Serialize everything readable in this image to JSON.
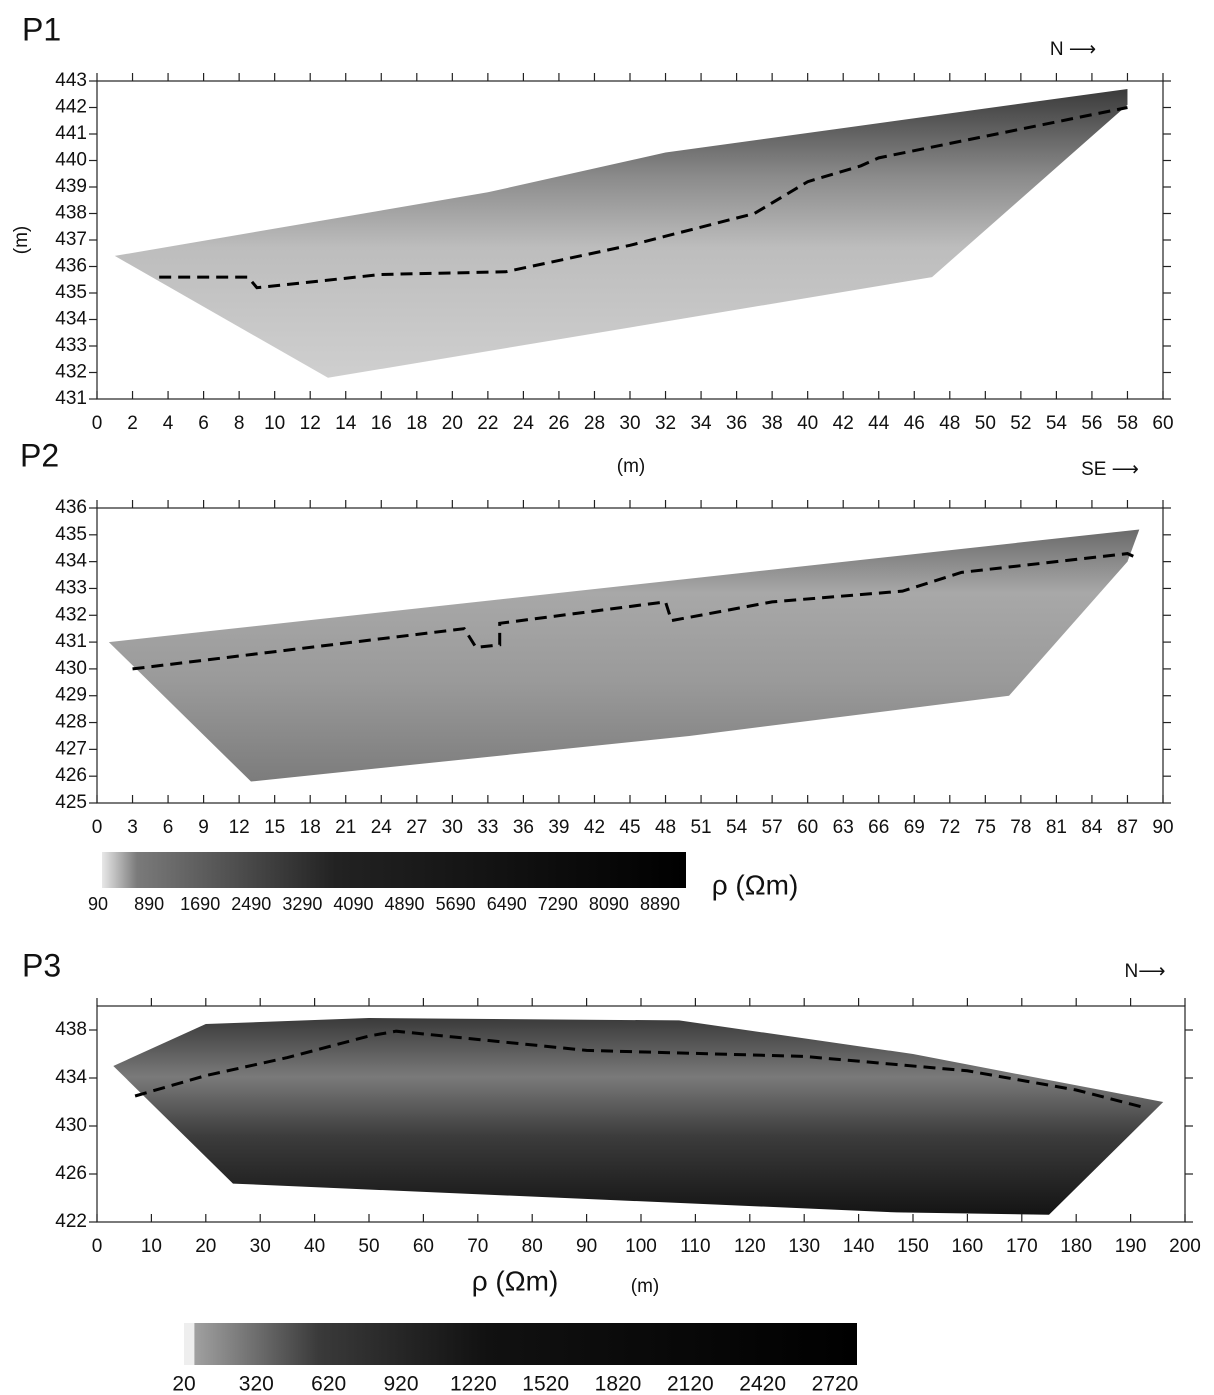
{
  "chart_data": [
    {
      "type": "line",
      "panel_label": "P1",
      "direction_label": "N ⟶",
      "xlabel": "(m)",
      "ylabel": "(m)",
      "xlim": [
        0,
        60
      ],
      "ylim": [
        431,
        443
      ],
      "xticks": [
        0,
        2,
        4,
        6,
        8,
        10,
        12,
        14,
        16,
        18,
        20,
        22,
        24,
        26,
        28,
        30,
        32,
        34,
        36,
        38,
        40,
        42,
        44,
        46,
        48,
        50,
        52,
        54,
        56,
        58,
        60
      ],
      "yticks": [
        431,
        432,
        433,
        434,
        435,
        436,
        437,
        438,
        439,
        440,
        441,
        442,
        443
      ],
      "section": {
        "x": [
          1,
          22,
          32,
          58,
          58,
          47,
          13
        ],
        "y": [
          436.4,
          438.8,
          440.3,
          442.7,
          442.1,
          435.6,
          431.8
        ]
      },
      "series": [
        {
          "color": "#000000",
          "x": [
            3.5,
            8.5,
            9,
            16,
            23,
            30,
            37,
            40,
            43,
            44,
            58
          ],
          "values": [
            435.6,
            435.6,
            435.2,
            435.7,
            435.8,
            436.8,
            438,
            439.2,
            439.8,
            440.1,
            442
          ]
        }
      ]
    },
    {
      "type": "line",
      "panel_label": "P2",
      "direction_label": "SE ⟶",
      "xlim": [
        0,
        90
      ],
      "ylim": [
        425,
        436
      ],
      "xticks": [
        0,
        3,
        6,
        9,
        12,
        15,
        18,
        21,
        24,
        27,
        30,
        33,
        36,
        39,
        42,
        45,
        48,
        51,
        54,
        57,
        60,
        63,
        66,
        69,
        72,
        75,
        78,
        81,
        84,
        87,
        90
      ],
      "yticks": [
        425,
        426,
        427,
        428,
        429,
        430,
        431,
        432,
        433,
        434,
        435,
        436
      ],
      "section": {
        "x": [
          1,
          88,
          87,
          77,
          50,
          13
        ],
        "y": [
          431,
          435.2,
          434,
          429,
          427.5,
          425.8
        ]
      },
      "series": [
        {
          "color": "#000000",
          "x": [
            3,
            31,
            32,
            34,
            34,
            48,
            48.5,
            57,
            68,
            73,
            87,
            88
          ],
          "values": [
            430,
            431.5,
            430.8,
            430.9,
            431.7,
            432.5,
            431.8,
            432.5,
            432.9,
            433.6,
            434.3,
            434.1
          ]
        }
      ],
      "colorbar": {
        "label": "ρ (Ωm)",
        "ticks": [
          90,
          890,
          1690,
          2490,
          3290,
          4090,
          4890,
          5690,
          6490,
          7290,
          8090,
          8890
        ]
      }
    },
    {
      "type": "line",
      "panel_label": "P3",
      "direction_label": "N⟶",
      "xlabel": "(m)",
      "xlim": [
        0,
        200
      ],
      "ylim": [
        422,
        440
      ],
      "xticks": [
        0,
        10,
        20,
        30,
        40,
        50,
        60,
        70,
        80,
        90,
        100,
        110,
        120,
        130,
        140,
        150,
        160,
        170,
        180,
        190,
        200
      ],
      "yticks": [
        422,
        426,
        430,
        434,
        438
      ],
      "section": {
        "x": [
          3,
          20,
          50,
          107,
          150,
          196,
          175,
          147,
          25
        ],
        "y": [
          435,
          438.5,
          439,
          438.8,
          436,
          432,
          422.6,
          422.8,
          425.2
        ]
      },
      "series": [
        {
          "color": "#000000",
          "x": [
            7,
            20,
            35,
            50,
            55,
            90,
            130,
            160,
            180,
            192
          ],
          "values": [
            432.5,
            434.2,
            435.7,
            437.5,
            437.9,
            436.3,
            435.8,
            434.6,
            433,
            431.6
          ]
        }
      ],
      "colorbar": {
        "label": "ρ (Ωm)",
        "ticks": [
          20,
          320,
          620,
          920,
          1220,
          1520,
          1820,
          2120,
          2420,
          2720
        ]
      }
    }
  ]
}
